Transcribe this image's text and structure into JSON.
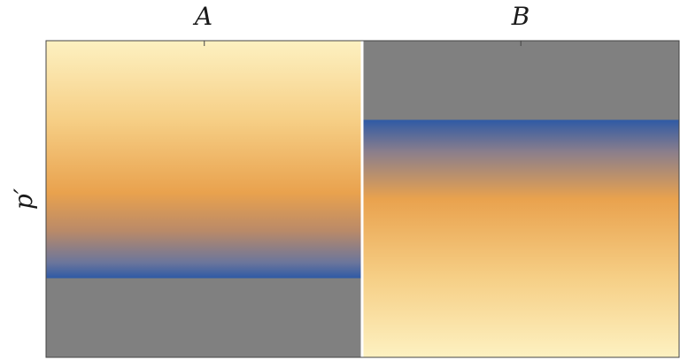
{
  "chart_data": {
    "type": "heatmap",
    "title": "",
    "categories": [
      "A",
      "B"
    ],
    "xlabel": "",
    "ylabel": "p′",
    "grid": false,
    "legend": "none",
    "colors": {
      "light": "#fdf1c1",
      "mid": "#e9a24e",
      "dark": "#2f5aa5",
      "masked": "#808080",
      "frame": "#444444",
      "divider": "#ffffff"
    },
    "columns": [
      {
        "name": "A",
        "gradient": [
          {
            "at": 0.0,
            "color": "#fdf1c1"
          },
          {
            "at": 0.25,
            "color": "#f6cf86"
          },
          {
            "at": 0.48,
            "color": "#e9a24e"
          },
          {
            "at": 0.6,
            "color": "#ba8a68"
          },
          {
            "at": 0.7,
            "color": "#6c769b"
          },
          {
            "at": 0.75,
            "color": "#2f5aa5"
          }
        ],
        "masked_from": 0.75,
        "masked_to": 1.0
      },
      {
        "name": "B",
        "gradient": [
          {
            "at": 0.25,
            "color": "#2f5aa5"
          },
          {
            "at": 0.35,
            "color": "#8a7e8c"
          },
          {
            "at": 0.5,
            "color": "#e9a24e"
          },
          {
            "at": 0.75,
            "color": "#f6cf86"
          },
          {
            "at": 1.0,
            "color": "#fdf1c1"
          }
        ],
        "masked_from": 0.0,
        "masked_to": 0.25
      }
    ]
  }
}
